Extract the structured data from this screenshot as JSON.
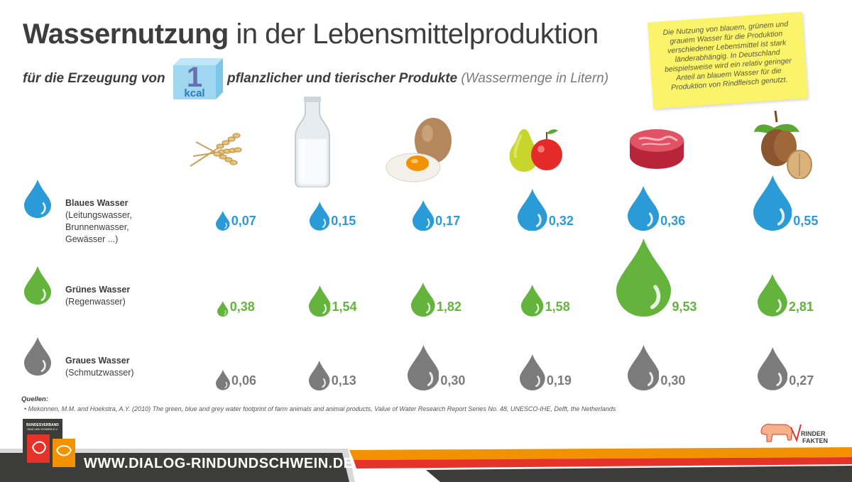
{
  "header": {
    "title_bold": "Wassernutzung",
    "title_rest": "in der Lebensmittelproduktion",
    "subtitle_prefix": "für die Erzeugung von",
    "subtitle_suffix": "pflanzlicher und tierischer Produkte",
    "subtitle_unit": "(Wassermenge in Litern)",
    "kcal_number": "1",
    "kcal_label": "kcal"
  },
  "note": {
    "text": "Die Nutzung von blauem, grünem und grauem Wasser für die Produktion verschiedener Lebensmittel ist stark länderabhängig. In Deutschland beispielsweise wird ein relativ geringer Anteil an blauem Wasser für die Produktion von Rindfleisch genutzt."
  },
  "products": [
    {
      "icon": "wheat-icon"
    },
    {
      "icon": "milk-bottle-icon"
    },
    {
      "icon": "egg-icon"
    },
    {
      "icon": "fruit-icon"
    },
    {
      "icon": "beef-icon"
    },
    {
      "icon": "nuts-icon"
    }
  ],
  "colors": {
    "blue": "#2a9bd7",
    "green": "#63b33d",
    "grey": "#7b7b7b",
    "footer_orange": "#f39200",
    "footer_red": "#e6332a",
    "footer_dark": "#3c3c3b",
    "note_yellow": "#fbf46a"
  },
  "rows": [
    {
      "key": "blue",
      "name": "Blaues Wasser",
      "sub": "(Leitungswasser,\nBrunnenwasser,\nGewässer ...)",
      "values": [
        "0,07",
        "0,15",
        "0,17",
        "0,32",
        "0,36",
        "0,55"
      ],
      "numeric": [
        0.07,
        0.15,
        0.17,
        0.32,
        0.36,
        0.55
      ]
    },
    {
      "key": "green",
      "name": "Grünes Wasser",
      "sub": "(Regenwasser)",
      "values": [
        "0,38",
        "1,54",
        "1,82",
        "1,58",
        "9,53",
        "2,81"
      ],
      "numeric": [
        0.38,
        1.54,
        1.82,
        1.58,
        9.53,
        2.81
      ]
    },
    {
      "key": "grey",
      "name": "Graues Wasser",
      "sub": "(Schmutzwasser)",
      "values": [
        "0,06",
        "0,13",
        "0,30",
        "0,19",
        "0,30",
        "0,27"
      ],
      "numeric": [
        0.06,
        0.13,
        0.3,
        0.19,
        0.3,
        0.27
      ]
    }
  ],
  "sources": {
    "title": "Quellen:",
    "items": [
      "•   Mekonnen, M.M. and Hoekstra, A.Y. (2010) The green, blue and grey water footprint of farm animals and animal products, Value of Water Research Report Series No. 48, UNESCO-IHE, Delft, the Netherlands"
    ]
  },
  "footer": {
    "url": "WWW.DIALOG-RINDUNDSCHWEIN.DE",
    "logo_text": "BUNDESVERBAND RIND UND SCHWEIN E.V.",
    "rinder_line1": "RINDER",
    "rinder_line2": "FAKTEN"
  }
}
